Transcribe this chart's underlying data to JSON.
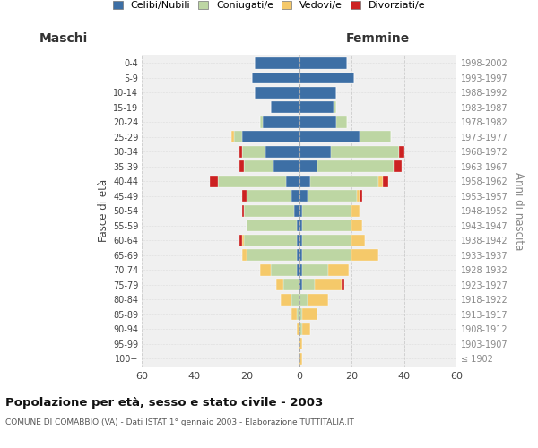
{
  "age_groups": [
    "100+",
    "95-99",
    "90-94",
    "85-89",
    "80-84",
    "75-79",
    "70-74",
    "65-69",
    "60-64",
    "55-59",
    "50-54",
    "45-49",
    "40-44",
    "35-39",
    "30-34",
    "25-29",
    "20-24",
    "15-19",
    "10-14",
    "5-9",
    "0-4"
  ],
  "birth_years": [
    "≤ 1902",
    "1903-1907",
    "1908-1912",
    "1913-1917",
    "1918-1922",
    "1923-1927",
    "1928-1932",
    "1933-1937",
    "1938-1942",
    "1943-1947",
    "1948-1952",
    "1953-1957",
    "1958-1962",
    "1963-1967",
    "1968-1972",
    "1973-1977",
    "1978-1982",
    "1983-1987",
    "1988-1992",
    "1993-1997",
    "1998-2002"
  ],
  "males": {
    "celibi": [
      0,
      0,
      0,
      0,
      0,
      0,
      1,
      1,
      1,
      1,
      2,
      3,
      5,
      10,
      13,
      22,
      14,
      11,
      17,
      18,
      17
    ],
    "coniugati": [
      0,
      0,
      0,
      1,
      3,
      6,
      10,
      19,
      20,
      19,
      19,
      17,
      26,
      11,
      9,
      3,
      1,
      0,
      0,
      0,
      0
    ],
    "vedovi": [
      0,
      0,
      1,
      2,
      4,
      3,
      4,
      2,
      1,
      0,
      0,
      0,
      0,
      0,
      0,
      1,
      0,
      0,
      0,
      0,
      0
    ],
    "divorziati": [
      0,
      0,
      0,
      0,
      0,
      0,
      0,
      0,
      1,
      0,
      1,
      2,
      3,
      2,
      1,
      0,
      0,
      0,
      0,
      0,
      0
    ]
  },
  "females": {
    "nubili": [
      0,
      0,
      0,
      0,
      0,
      1,
      1,
      1,
      1,
      1,
      1,
      3,
      4,
      7,
      12,
      23,
      14,
      13,
      14,
      21,
      18
    ],
    "coniugate": [
      0,
      0,
      1,
      1,
      3,
      5,
      10,
      19,
      19,
      19,
      19,
      19,
      26,
      29,
      26,
      12,
      4,
      1,
      0,
      0,
      0
    ],
    "vedove": [
      1,
      1,
      3,
      6,
      8,
      10,
      8,
      10,
      5,
      4,
      3,
      1,
      2,
      0,
      0,
      0,
      0,
      0,
      0,
      0,
      0
    ],
    "divorziate": [
      0,
      0,
      0,
      0,
      0,
      1,
      0,
      0,
      0,
      0,
      0,
      1,
      2,
      3,
      2,
      0,
      0,
      0,
      0,
      0,
      0
    ]
  },
  "colors": {
    "celibi": "#3d6fa5",
    "coniugati": "#bdd6a3",
    "vedovi": "#f5c96a",
    "divorziati": "#cc2222"
  },
  "xlim": 60,
  "title": "Popolazione per età, sesso e stato civile - 2003",
  "subtitle": "COMUNE DI COMABBIO (VA) - Dati ISTAT 1° gennaio 2003 - Elaborazione TUTTITALIA.IT",
  "ylabel_left": "Fasce di età",
  "ylabel_right": "Anni di nascita",
  "xlabel_maschi": "Maschi",
  "xlabel_femmine": "Femmine",
  "legend_labels": [
    "Celibi/Nubili",
    "Coniugati/e",
    "Vedovi/e",
    "Divorziati/e"
  ],
  "bg_color": "#ffffff",
  "plot_bg_color": "#f0f0f0"
}
